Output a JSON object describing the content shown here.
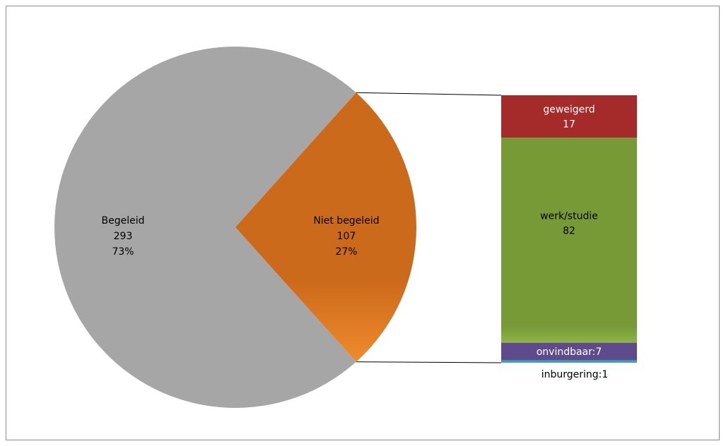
{
  "chart_data": {
    "type": "pie",
    "pie": {
      "slices": [
        {
          "label": "Begeleid",
          "value": 293,
          "percent_label": "73%",
          "color": "#a6a6a6",
          "text_color": "#000000"
        },
        {
          "label": "Niet begeleid",
          "value": 107,
          "percent_label": "27%",
          "color": "#cc6a1c",
          "text_color": "#000000"
        }
      ]
    },
    "breakdown": {
      "parent": "Niet begeleid",
      "segments": [
        {
          "label": "geweigerd",
          "value": 17,
          "display": "geweigerd\n17",
          "color": "#a52a2a",
          "text_color": "#ffffff"
        },
        {
          "label": "werk/studie",
          "value": 82,
          "display": "werk/studie\n82",
          "color": "#779a37",
          "text_color": "#000000"
        },
        {
          "label": "onvindbaar",
          "value": 7,
          "display": "onvindbaar:7",
          "color": "#5f4b8b",
          "text_color": "#ffffff"
        },
        {
          "label": "inburgering",
          "value": 1,
          "display": "inburgering:1",
          "color": "#3f9fbf",
          "text_color": "#000000"
        }
      ]
    },
    "legend": "none",
    "grid": false
  }
}
